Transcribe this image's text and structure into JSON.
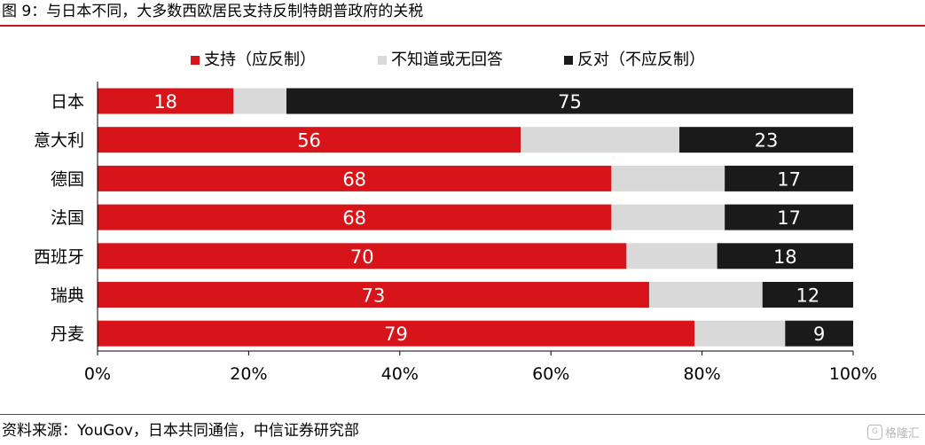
{
  "title": "图 9：与日本不同，大多数西欧居民支持反制特朗普政府的关税",
  "source": "资料来源：YouGov，日本共同通信，中信证券研究部",
  "watermark": "格隆汇",
  "colors": {
    "accent": "#c8161d",
    "support": "#d7141a",
    "unsure": "#d9d9d9",
    "oppose": "#1a1a1a",
    "rule": "#c8161d"
  },
  "chart_data": {
    "type": "bar",
    "orientation": "horizontal",
    "stacked": true,
    "categories": [
      "日本",
      "意大利",
      "德国",
      "法国",
      "西班牙",
      "瑞典",
      "丹麦"
    ],
    "series": [
      {
        "name": "支持（应反制）",
        "values": [
          18,
          56,
          68,
          68,
          70,
          73,
          79
        ],
        "color": "#d7141a"
      },
      {
        "name": "不知道或无回答",
        "values": [
          7,
          21,
          15,
          15,
          12,
          15,
          12
        ],
        "color": "#d9d9d9"
      },
      {
        "name": "反对（不应反制）",
        "values": [
          75,
          23,
          17,
          17,
          18,
          12,
          9
        ],
        "color": "#1a1a1a"
      }
    ],
    "data_labels": [
      [
        "18",
        "56",
        "68",
        "68",
        "70",
        "73",
        "79"
      ],
      null,
      [
        "75",
        "23",
        "17",
        "17",
        "18",
        "12",
        "9"
      ]
    ],
    "xlim": [
      0,
      100
    ],
    "xticks": [
      "0%",
      "20%",
      "40%",
      "60%",
      "80%",
      "100%"
    ],
    "legend_position": "top-center",
    "grid": false
  }
}
